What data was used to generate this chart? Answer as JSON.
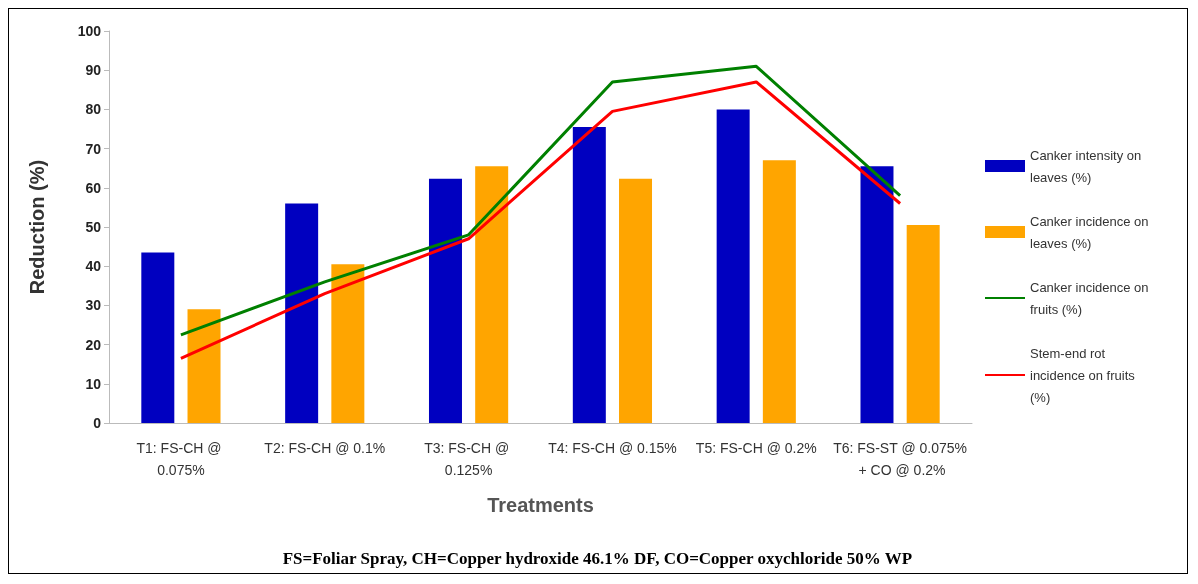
{
  "chart_data": {
    "type": "bar",
    "xlabel": "Treatments",
    "ylabel": "Reduction (%)",
    "categories": [
      "T1: FS-CH @ 0.075%",
      "T2: FS-CH @ 0.1%",
      "T3: FS-CH @ 0.125%",
      "T4: FS-CH @ 0.15%",
      "T5: FS-CH @ 0.2%",
      "T6: FS-ST @ 0.075% + CO @ 0.2%"
    ],
    "series": [
      {
        "name": "Canker intensity on leaves (%)",
        "color": "#0000c0",
        "values": [
          43.5,
          56,
          62.3,
          75.5,
          80,
          65.5
        ]
      },
      {
        "name": "Canker incidence on leaves (%)",
        "color": "#ffa500",
        "values": [
          29,
          40.5,
          65.5,
          62.3,
          67,
          50.5
        ]
      },
      {
        "name": "Canker incidence on fruits (%)",
        "type": "line",
        "color": "#008000",
        "values": [
          22.5,
          36,
          48,
          87,
          91,
          58
        ]
      },
      {
        "name": "Stem-end rot incidence on fruits (%)",
        "type": "line",
        "color": "#ff0000",
        "values": [
          16.5,
          33,
          47,
          79.5,
          87,
          56
        ]
      }
    ],
    "ylim": [
      0,
      100
    ],
    "yticks": [
      0,
      10,
      20,
      30,
      40,
      50,
      60,
      70,
      80,
      90,
      100
    ],
    "grid": false,
    "legend": "right",
    "marker": "none",
    "annotations": [
      "FS=Foliar Spray, CH=Copper hydroxide 46.1% DF, CO=Copper oxychloride 50% WP"
    ]
  }
}
